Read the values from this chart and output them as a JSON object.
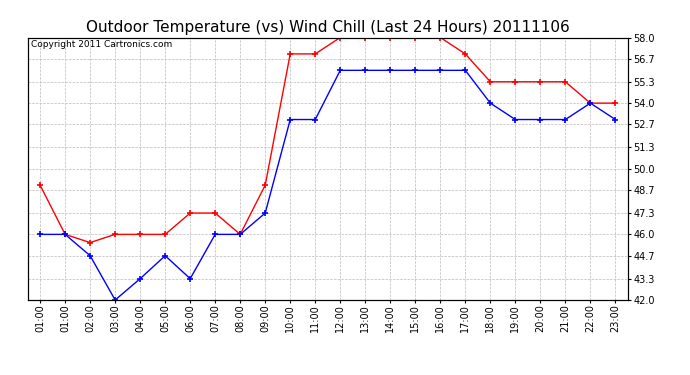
{
  "title": "Outdoor Temperature (vs) Wind Chill (Last 24 Hours) 20111106",
  "copyright": "Copyright 2011 Cartronics.com",
  "hours": [
    "01:00",
    "01:00",
    "02:00",
    "03:00",
    "04:00",
    "05:00",
    "06:00",
    "07:00",
    "08:00",
    "09:00",
    "10:00",
    "11:00",
    "12:00",
    "13:00",
    "14:00",
    "15:00",
    "16:00",
    "17:00",
    "18:00",
    "19:00",
    "20:00",
    "21:00",
    "22:00",
    "23:00"
  ],
  "temp": [
    49.0,
    46.0,
    45.5,
    46.0,
    46.0,
    46.0,
    47.3,
    47.3,
    46.0,
    49.0,
    57.0,
    57.0,
    58.0,
    58.0,
    58.0,
    58.0,
    58.0,
    57.0,
    55.3,
    55.3,
    55.3,
    55.3,
    54.0,
    54.0
  ],
  "windchill": [
    46.0,
    46.0,
    44.7,
    42.0,
    43.3,
    44.7,
    43.3,
    46.0,
    46.0,
    47.3,
    53.0,
    53.0,
    56.0,
    56.0,
    56.0,
    56.0,
    56.0,
    56.0,
    54.0,
    53.0,
    53.0,
    53.0,
    54.0,
    53.0
  ],
  "temp_color": "#ff0000",
  "windchill_color": "#0000ff",
  "bg_color": "#ffffff",
  "plot_bg_color": "#ffffff",
  "grid_color": "#bbbbbb",
  "ylim": [
    42.0,
    58.0
  ],
  "yticks": [
    42.0,
    43.3,
    44.7,
    46.0,
    47.3,
    48.7,
    50.0,
    51.3,
    52.7,
    54.0,
    55.3,
    56.7,
    58.0
  ],
  "title_fontsize": 11,
  "copyright_fontsize": 6.5,
  "tick_fontsize": 7
}
